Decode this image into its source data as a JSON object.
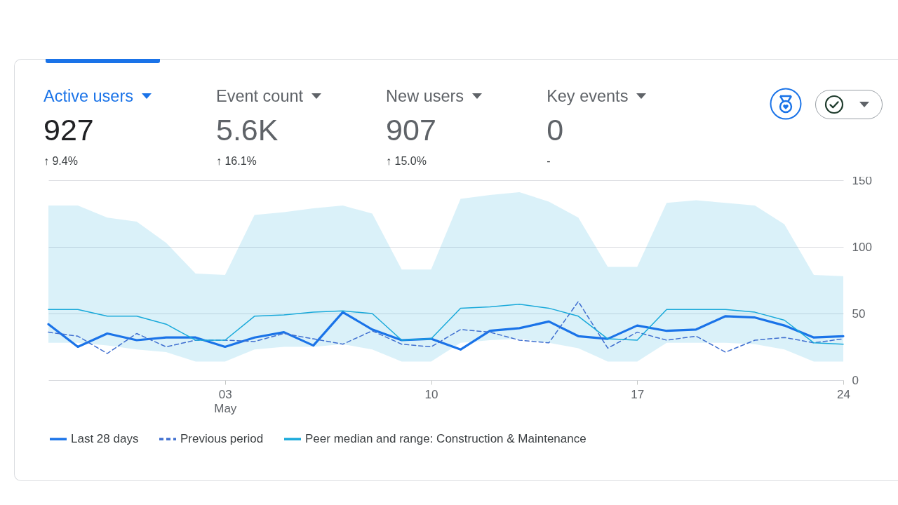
{
  "chart_data": [
    {
      "type": "other",
      "annotations": [
        "Active users",
        "927",
        "↑ 9.4%",
        "Event count",
        "5.6K",
        "↑ 16.1%",
        "New users",
        "907",
        "↑ 15.0%",
        "Key events",
        "0",
        "-"
      ]
    },
    {
      "type": "line",
      "x": [
        "--04-27",
        "--04-28",
        "--04-29",
        "--04-30",
        "--05-01",
        "--05-02",
        "--05-03",
        "--05-04",
        "--05-05",
        "--05-06",
        "--05-07",
        "--05-08",
        "--05-09",
        "--05-10",
        "--05-11",
        "--05-12",
        "--05-13",
        "--05-14",
        "--05-15",
        "--05-16",
        "--05-17",
        "--05-18",
        "--05-19",
        "--05-20",
        "--05-21",
        "--05-22",
        "--05-23",
        "--05-24"
      ],
      "xlim": [
        "--04-27",
        "--05-24"
      ],
      "xticks": [
        {
          "value": "--05-03",
          "label": "03 May"
        },
        {
          "value": "--05-10",
          "label": "10"
        },
        {
          "value": "--05-17",
          "label": "17"
        },
        {
          "value": "--05-24",
          "label": "24"
        }
      ],
      "ylim": [
        0,
        150
      ],
      "yticks": [
        0,
        50,
        100,
        150
      ],
      "grid": "y",
      "legend": "bottom",
      "series": [
        {
          "name": "Last 28 days",
          "color": "#1a73e8",
          "line_style": "solid",
          "values": [
            42,
            25,
            35,
            30,
            32,
            32,
            25,
            32,
            36,
            26,
            51,
            38,
            30,
            31,
            23,
            37,
            39,
            44,
            33,
            31,
            41,
            37,
            38,
            48,
            47,
            41,
            32,
            33
          ]
        },
        {
          "name": "Previous period",
          "color": "#3f6fd0",
          "line_style": "dashed",
          "values": [
            36,
            33,
            20,
            35,
            25,
            30,
            30,
            29,
            35,
            31,
            27,
            37,
            27,
            25,
            38,
            36,
            30,
            28,
            59,
            24,
            36,
            30,
            33,
            21,
            30,
            32,
            28,
            31
          ]
        },
        {
          "name": "Peer median and range: Construction & Maintenance",
          "color": "#18a9da",
          "line_style": "solid",
          "values": [
            53,
            53,
            48,
            48,
            42,
            30,
            30,
            48,
            49,
            51,
            52,
            50,
            30,
            31,
            54,
            55,
            57,
            54,
            48,
            31,
            30,
            53,
            53,
            53,
            51,
            45,
            28,
            27
          ],
          "lower": [
            28,
            28,
            26,
            23,
            21,
            14,
            14,
            23,
            25,
            25,
            27,
            23,
            14,
            14,
            28,
            30,
            31,
            28,
            24,
            14,
            14,
            28,
            28,
            28,
            27,
            23,
            14,
            14
          ],
          "upper": [
            131,
            131,
            122,
            119,
            103,
            80,
            79,
            124,
            126,
            129,
            131,
            125,
            83,
            83,
            136,
            139,
            141,
            134,
            122,
            85,
            85,
            133,
            135,
            133,
            131,
            117,
            79,
            78
          ]
        }
      ]
    }
  ]
}
